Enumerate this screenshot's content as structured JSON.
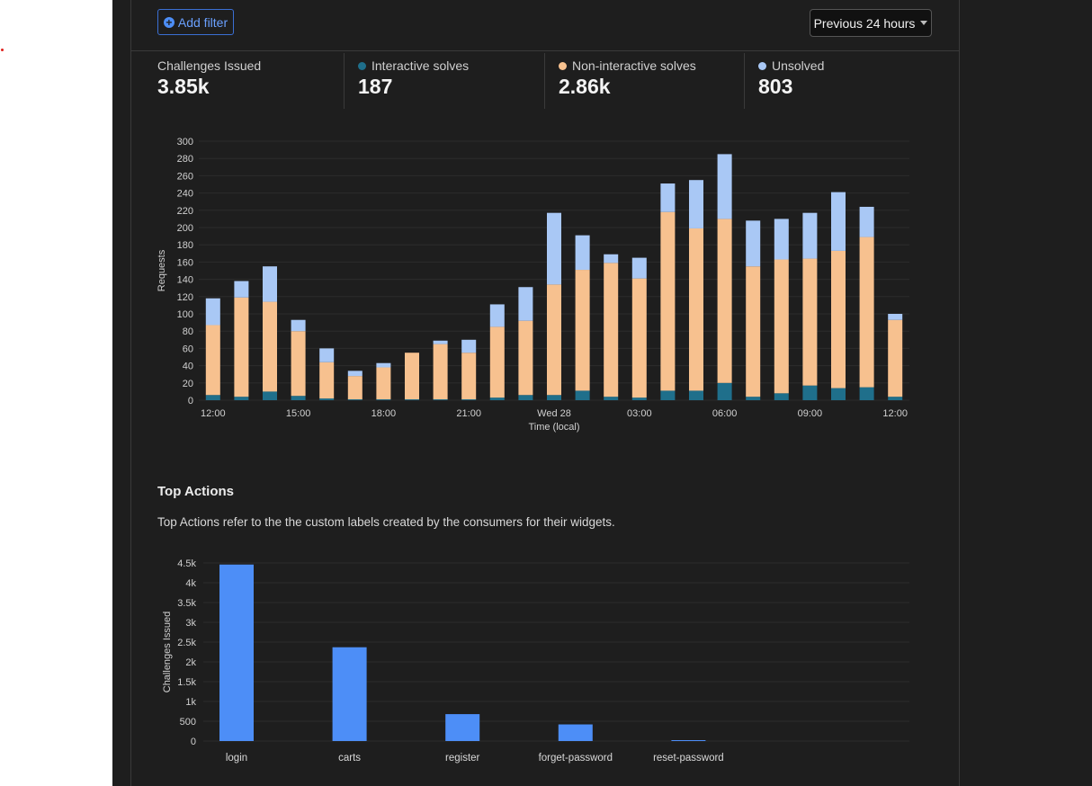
{
  "toolbar": {
    "add_filter_label": "Add filter",
    "time_range": "Previous 24 hours"
  },
  "stats": [
    {
      "label": "Challenges Issued",
      "value": "3.85k",
      "color": ""
    },
    {
      "label": "Interactive solves",
      "value": "187",
      "color": "#1f6f8b"
    },
    {
      "label": "Non-interactive solves",
      "value": "2.86k",
      "color": "#f7c18f"
    },
    {
      "label": "Unsolved",
      "value": "803",
      "color": "#a9c8f5"
    }
  ],
  "chart_data": [
    {
      "type": "bar",
      "stacked": true,
      "ylabel": "Requests",
      "xlabel": "Time (local)",
      "ylim": [
        0,
        300
      ],
      "yticks": [
        0,
        20,
        40,
        60,
        80,
        100,
        120,
        140,
        160,
        180,
        200,
        220,
        240,
        260,
        280,
        300
      ],
      "xtick_labels": [
        "12:00",
        "15:00",
        "18:00",
        "21:00",
        "Wed 28",
        "03:00",
        "06:00",
        "09:00",
        "12:00"
      ],
      "colors": [
        "#1f6f8b",
        "#f7c18f",
        "#a9c8f5"
      ],
      "series": [
        {
          "name": "Interactive solves",
          "values": [
            6,
            4,
            10,
            5,
            2,
            1,
            1,
            1,
            1,
            1,
            3,
            6,
            6,
            11,
            4,
            3,
            11,
            11,
            20,
            4,
            8,
            17,
            14,
            15,
            4
          ]
        },
        {
          "name": "Non-interactive solves",
          "values": [
            81,
            115,
            104,
            75,
            42,
            27,
            37,
            54,
            64,
            54,
            82,
            86,
            128,
            140,
            155,
            138,
            207,
            188,
            190,
            151,
            155,
            147,
            159,
            174,
            89
          ]
        },
        {
          "name": "Unsolved",
          "values": [
            31,
            19,
            41,
            13,
            16,
            6,
            5,
            0,
            4,
            15,
            26,
            39,
            83,
            40,
            10,
            24,
            33,
            56,
            75,
            53,
            47,
            53,
            68,
            35,
            7
          ]
        }
      ]
    },
    {
      "type": "bar",
      "ylabel": "Challenges Issued",
      "ylim": [
        0,
        4500
      ],
      "ytick_labels": [
        "0",
        "500",
        "1k",
        "1.5k",
        "2k",
        "2.5k",
        "3k",
        "3.5k",
        "4k",
        "4.5k"
      ],
      "categories": [
        "login",
        "carts",
        "register",
        "forget-password",
        "reset-password"
      ],
      "values": [
        4460,
        2370,
        680,
        420,
        20
      ],
      "color": "#4d8ef7"
    }
  ],
  "top_actions": {
    "title": "Top Actions",
    "description": "Top Actions refer to the the custom labels created by the consumers for their widgets."
  }
}
